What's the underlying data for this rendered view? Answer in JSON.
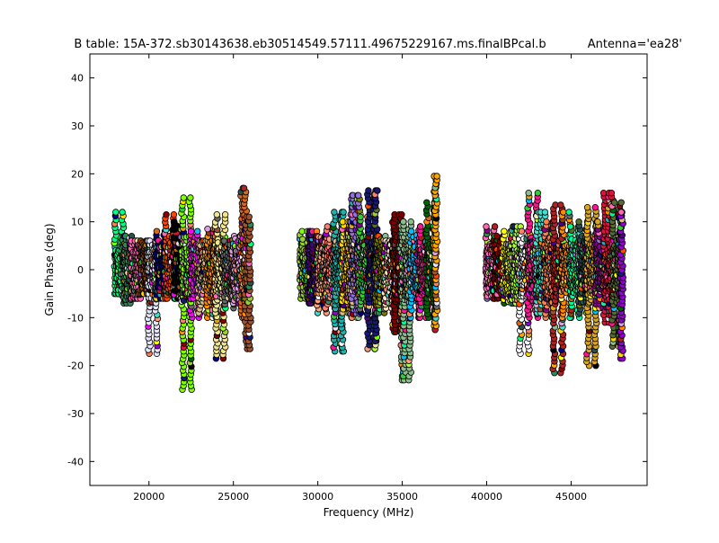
{
  "chart_data": {
    "type": "scatter",
    "title": "B table: 15A-372.sb30143638.eb30514549.57111.49675229167.ms.finalBPcal.b",
    "subtitle": "Antenna='ea28'",
    "xlabel": "Frequency (MHz)",
    "ylabel": "Gain Phase (deg)",
    "xlim": [
      16500,
      49500
    ],
    "ylim": [
      -45,
      45
    ],
    "xticks": [
      20000,
      25000,
      30000,
      35000,
      40000,
      45000
    ],
    "yticks": [
      -40,
      -30,
      -20,
      -10,
      0,
      10,
      20,
      30,
      40
    ],
    "grid": false,
    "series_note": "Each spectral window: frequency start/end (MHz), phase min/max (deg), marker color",
    "windows": [
      {
        "f0": 18000,
        "f1": 18450,
        "min": -5,
        "max": 12,
        "color": "#00ff7f"
      },
      {
        "f0": 18500,
        "f1": 18950,
        "min": -7,
        "max": 7,
        "color": "#2e8b57"
      },
      {
        "f0": 19000,
        "f1": 19450,
        "min": -6,
        "max": 6,
        "color": "#ff69b4"
      },
      {
        "f0": 19500,
        "f1": 19950,
        "min": -5,
        "max": 6,
        "color": "#8b4513"
      },
      {
        "f0": 20000,
        "f1": 20450,
        "min": -17.5,
        "max": 6,
        "color": "#e6e6fa"
      },
      {
        "f0": 20500,
        "f1": 20950,
        "min": -6,
        "max": 8,
        "color": "#000080"
      },
      {
        "f0": 21000,
        "f1": 21450,
        "min": -6,
        "max": 11.5,
        "color": "#ff4500"
      },
      {
        "f0": 21500,
        "f1": 21950,
        "min": -6,
        "max": 10,
        "color": "#000000"
      },
      {
        "f0": 22000,
        "f1": 22450,
        "min": -25,
        "max": 15,
        "color": "#7fff00"
      },
      {
        "f0": 22500,
        "f1": 22950,
        "min": -10,
        "max": 8,
        "color": "#ff00ff"
      },
      {
        "f0": 23000,
        "f1": 23450,
        "min": -9,
        "max": 6,
        "color": "#deb887"
      },
      {
        "f0": 23500,
        "f1": 23950,
        "min": -10,
        "max": 8.5,
        "color": "#ff8c00"
      },
      {
        "f0": 24000,
        "f1": 24450,
        "min": -18.5,
        "max": 11.5,
        "color": "#f0e68c"
      },
      {
        "f0": 24500,
        "f1": 24950,
        "min": -8,
        "max": 6,
        "color": "#696969"
      },
      {
        "f0": 25000,
        "f1": 25450,
        "min": -7,
        "max": 7,
        "color": "#dda0dd"
      },
      {
        "f0": 25500,
        "f1": 25700,
        "min": -10,
        "max": 17,
        "color": "#d2691e"
      },
      {
        "f0": 25750,
        "f1": 25950,
        "min": -16.5,
        "max": 11,
        "color": "#a0522d"
      },
      {
        "f0": 29000,
        "f1": 29450,
        "min": -6,
        "max": 8,
        "color": "#9acd32"
      },
      {
        "f0": 29500,
        "f1": 29950,
        "min": -7,
        "max": 8,
        "color": "#4b0082"
      },
      {
        "f0": 30000,
        "f1": 30450,
        "min": -9,
        "max": 7,
        "color": "#ffa07a"
      },
      {
        "f0": 30500,
        "f1": 30950,
        "min": -8,
        "max": 9,
        "color": "#fa8072"
      },
      {
        "f0": 31000,
        "f1": 31450,
        "min": -17,
        "max": 12,
        "color": "#20b2aa"
      },
      {
        "f0": 31500,
        "f1": 31950,
        "min": -9,
        "max": 10,
        "color": "#ffd700"
      },
      {
        "f0": 32000,
        "f1": 32450,
        "min": -10,
        "max": 15.5,
        "color": "#9370db"
      },
      {
        "f0": 32500,
        "f1": 32950,
        "min": -9,
        "max": 11,
        "color": "#32cd32"
      },
      {
        "f0": 33000,
        "f1": 33450,
        "min": -16.5,
        "max": 16.5,
        "color": "#191970"
      },
      {
        "f0": 33500,
        "f1": 33950,
        "min": -9,
        "max": 7,
        "color": "#808000"
      },
      {
        "f0": 34000,
        "f1": 34450,
        "min": -8,
        "max": 6,
        "color": "#ffe4c4"
      },
      {
        "f0": 34500,
        "f1": 34950,
        "min": -13,
        "max": 11.5,
        "color": "#800000"
      },
      {
        "f0": 35000,
        "f1": 35450,
        "min": -23,
        "max": 10,
        "color": "#8fbc8f"
      },
      {
        "f0": 35500,
        "f1": 35950,
        "min": -10,
        "max": 8,
        "color": "#00bfff"
      },
      {
        "f0": 36000,
        "f1": 36450,
        "min": -10,
        "max": 9,
        "color": "#ff1493"
      },
      {
        "f0": 36500,
        "f1": 36900,
        "min": -10,
        "max": 14,
        "color": "#006400"
      },
      {
        "f0": 36950,
        "f1": 37000,
        "min": -12.5,
        "max": 19.5,
        "color": "#ffa500"
      },
      {
        "f0": 40000,
        "f1": 40450,
        "min": -6,
        "max": 9,
        "color": "#ff69b4"
      },
      {
        "f0": 40500,
        "f1": 40950,
        "min": -6,
        "max": 7,
        "color": "#8b0000"
      },
      {
        "f0": 41000,
        "f1": 41450,
        "min": -7,
        "max": 8,
        "color": "#ffff00"
      },
      {
        "f0": 41500,
        "f1": 41950,
        "min": -7,
        "max": 9,
        "color": "#adff2f"
      },
      {
        "f0": 42000,
        "f1": 42450,
        "min": -17.5,
        "max": 8,
        "color": "#f8f8ff"
      },
      {
        "f0": 42500,
        "f1": 42950,
        "min": -10,
        "max": 16,
        "color": "#ff1493"
      },
      {
        "f0": 43000,
        "f1": 43450,
        "min": -9,
        "max": 12,
        "color": "#40e0d0"
      },
      {
        "f0": 43500,
        "f1": 43950,
        "min": -10,
        "max": 10,
        "color": "#ff7f50"
      },
      {
        "f0": 44000,
        "f1": 44450,
        "min": -21.5,
        "max": 13.5,
        "color": "#b22222"
      },
      {
        "f0": 44500,
        "f1": 44950,
        "min": -10,
        "max": 12,
        "color": "#ff8c00"
      },
      {
        "f0": 45000,
        "f1": 45450,
        "min": -10,
        "max": 9,
        "color": "#00fa9a"
      },
      {
        "f0": 45500,
        "f1": 45950,
        "min": -9,
        "max": 10,
        "color": "#2f4f4f"
      },
      {
        "f0": 46000,
        "f1": 46450,
        "min": -20,
        "max": 13,
        "color": "#daa520"
      },
      {
        "f0": 46500,
        "f1": 46950,
        "min": -8,
        "max": 10,
        "color": "#8b008b"
      },
      {
        "f0": 47000,
        "f1": 47450,
        "min": -11,
        "max": 16,
        "color": "#dc143c"
      },
      {
        "f0": 47500,
        "f1": 47900,
        "min": -16,
        "max": 14,
        "color": "#556b2f"
      },
      {
        "f0": 47950,
        "f1": 48000,
        "min": -18.5,
        "max": 12,
        "color": "#9400d3"
      }
    ]
  }
}
